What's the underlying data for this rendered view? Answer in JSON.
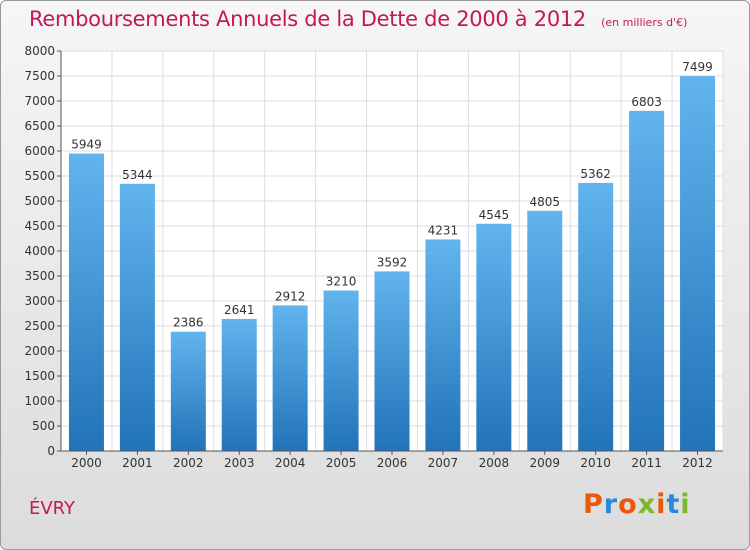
{
  "header": {
    "title": "Remboursements Annuels de la Dette de 2000 à 2012",
    "subtitle": "(en milliers d'€)"
  },
  "footer": {
    "city": "ÉVRY",
    "logo_text": "Proxiti",
    "logo_colors": [
      "#e8590c",
      "#2a8ad8",
      "#e8590c",
      "#7bb82c",
      "#e8590c",
      "#2a8ad8",
      "#7bb82c"
    ]
  },
  "colors": {
    "title": "#c2185b",
    "bar_top": "#62b4ee",
    "bar_bottom": "#2273b8"
  },
  "chart_data": {
    "type": "bar",
    "categories": [
      "2000",
      "2001",
      "2002",
      "2003",
      "2004",
      "2005",
      "2006",
      "2007",
      "2008",
      "2009",
      "2010",
      "2011",
      "2012"
    ],
    "values": [
      5949,
      5344,
      2386,
      2641,
      2912,
      3210,
      3592,
      4231,
      4545,
      4805,
      5362,
      6803,
      7499
    ],
    "title": "Remboursements Annuels de la Dette de 2000 à 2012",
    "subtitle": "(en milliers d'€)",
    "xlabel": "",
    "ylabel": "",
    "ylim": [
      0,
      8000
    ],
    "ytick_step": 500,
    "grid": true,
    "data_labels": true
  }
}
